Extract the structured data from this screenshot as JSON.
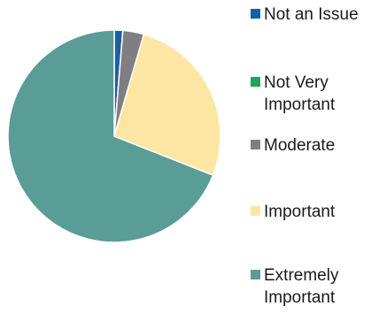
{
  "chart_data": {
    "type": "pie",
    "title": "",
    "categories": [
      "Not an Issue",
      "Not Very\nImportant",
      "Moderate",
      "Important",
      "Extremely\nImportant"
    ],
    "values": [
      1.3,
      0,
      3.2,
      26.5,
      69.0
    ],
    "colors": [
      "#1c5fa5",
      "#1fa35c",
      "#7f7f83",
      "#fde6a3",
      "#5a9c96"
    ],
    "start_angle_deg": 0,
    "legend_position": "right"
  }
}
